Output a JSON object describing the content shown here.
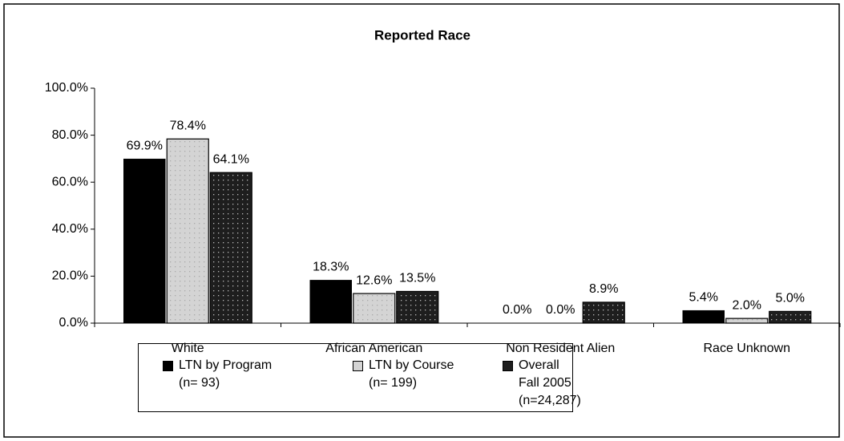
{
  "chart_data": {
    "type": "bar",
    "title": "Reported Race",
    "categories": [
      "White",
      "African American",
      "Non Resident Alien",
      "Race Unknown"
    ],
    "series": [
      {
        "name": "LTN by Program\n(n= 93)",
        "color": "#000000",
        "values": [
          69.9,
          18.3,
          0.0,
          5.4
        ],
        "value_labels": [
          "69.9%",
          "18.3%",
          "0.0%",
          "5.4%"
        ]
      },
      {
        "name": "LTN by Course\n(n= 199)",
        "color": "#d4d4d4",
        "values": [
          78.4,
          12.6,
          0.0,
          2.0
        ],
        "value_labels": [
          "78.4%",
          "12.6%",
          "0.0%",
          "2.0%"
        ]
      },
      {
        "name": "Overall\nFall 2005 (n=24,287)",
        "color": "#1e1e1e",
        "values": [
          64.1,
          13.5,
          8.9,
          5.0
        ],
        "value_labels": [
          "64.1%",
          "13.5%",
          "8.9%",
          "5.0%"
        ]
      }
    ],
    "ylim": [
      0,
      100
    ],
    "yticks": [
      {
        "value": 0,
        "label": "0.0%"
      },
      {
        "value": 20,
        "label": "20.0%"
      },
      {
        "value": 40,
        "label": "40.0%"
      },
      {
        "value": 60,
        "label": "60.0%"
      },
      {
        "value": 80,
        "label": "80.0%"
      },
      {
        "value": 100,
        "label": "100.0%"
      }
    ],
    "legend": "bottom"
  }
}
